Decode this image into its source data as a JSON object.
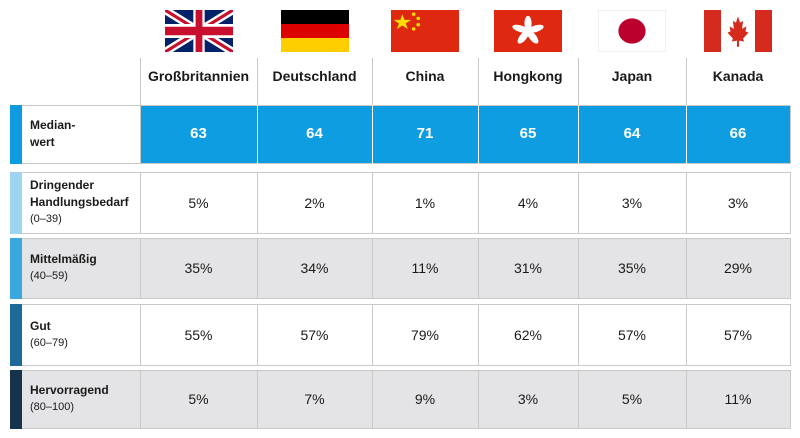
{
  "countries": [
    {
      "name": "Großbritannien",
      "flag": "uk-flag-icon"
    },
    {
      "name": "Deutschland",
      "flag": "germany-flag-icon"
    },
    {
      "name": "China",
      "flag": "china-flag-icon"
    },
    {
      "name": "Hongkong",
      "flag": "hongkong-flag-icon"
    },
    {
      "name": "Japan",
      "flag": "japan-flag-icon"
    },
    {
      "name": "Kanada",
      "flag": "canada-flag-icon"
    }
  ],
  "rows": [
    {
      "label_lines": [
        "Median-",
        "wert"
      ],
      "range": "",
      "values": [
        "63",
        "64",
        "71",
        "65",
        "64",
        "66"
      ],
      "accent": "#0d9be0",
      "highlight": true
    },
    {
      "label_lines": [
        "Dringender",
        "Handlungsbedarf"
      ],
      "range": "(0–39)",
      "values": [
        "5%",
        "2%",
        "1%",
        "4%",
        "3%",
        "3%"
      ],
      "accent": "#9fd3f2",
      "highlight": false
    },
    {
      "label_lines": [
        "Mittelmäßig"
      ],
      "range": "(40–59)",
      "values": [
        "35%",
        "34%",
        "11%",
        "31%",
        "35%",
        "29%"
      ],
      "accent": "#3aa7dd",
      "highlight": false
    },
    {
      "label_lines": [
        "Gut"
      ],
      "range": "(60–79)",
      "values": [
        "55%",
        "57%",
        "79%",
        "62%",
        "57%",
        "57%"
      ],
      "accent": "#1d6a98",
      "highlight": false
    },
    {
      "label_lines": [
        "Hervorragend"
      ],
      "range": "(80–100)",
      "values": [
        "5%",
        "7%",
        "9%",
        "3%",
        "5%",
        "11%"
      ],
      "accent": "#16334d",
      "highlight": false
    }
  ],
  "colors": {
    "median_row": "#0f9de2",
    "shaded_row": "#e4e4e6",
    "plain_row": "#ffffff",
    "grid": "#c9c9c9"
  },
  "chart_data": {
    "type": "table",
    "columns": [
      "Großbritannien",
      "Deutschland",
      "China",
      "Hongkong",
      "Japan",
      "Kanada"
    ],
    "rows": [
      {
        "label": "Median-wert",
        "values": [
          63,
          64,
          71,
          65,
          64,
          66
        ]
      },
      {
        "label": "Dringender Handlungsbedarf (0–39)",
        "values": [
          5,
          2,
          1,
          4,
          3,
          3
        ],
        "unit": "%"
      },
      {
        "label": "Mittelmäßig (40–59)",
        "values": [
          35,
          34,
          11,
          31,
          35,
          29
        ],
        "unit": "%"
      },
      {
        "label": "Gut (60–79)",
        "values": [
          55,
          57,
          79,
          62,
          57,
          57
        ],
        "unit": "%"
      },
      {
        "label": "Hervorragend (80–100)",
        "values": [
          5,
          7,
          9,
          3,
          5,
          11
        ],
        "unit": "%"
      }
    ]
  }
}
